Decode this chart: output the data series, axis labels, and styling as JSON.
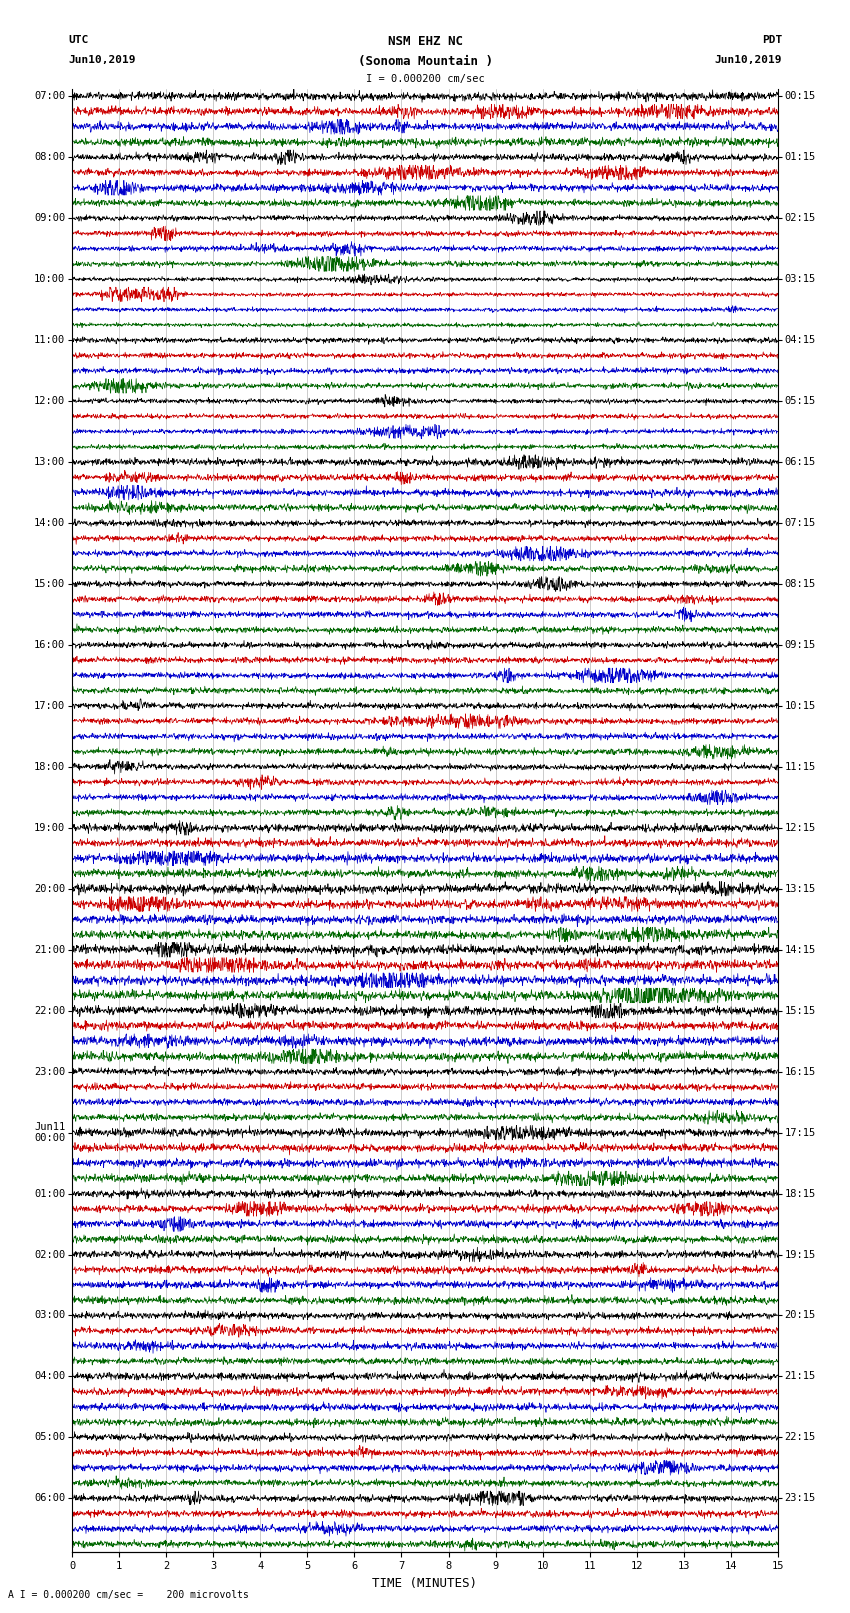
{
  "title_line1": "NSM EHZ NC",
  "title_line2": "(Sonoma Mountain )",
  "scale_label": "I = 0.000200 cm/sec",
  "footer_label": "A I = 0.000200 cm/sec =    200 microvolts",
  "left_header": "UTC",
  "left_date": "Jun10,2019",
  "right_header": "PDT",
  "right_date": "Jun10,2019",
  "xlabel": "TIME (MINUTES)",
  "xmin": 0,
  "xmax": 15,
  "colors": [
    "#000000",
    "#cc0000",
    "#0000cc",
    "#006600"
  ],
  "utc_hour_labels": [
    "07:00",
    "08:00",
    "09:00",
    "10:00",
    "11:00",
    "12:00",
    "13:00",
    "14:00",
    "15:00",
    "16:00",
    "17:00",
    "18:00",
    "19:00",
    "20:00",
    "21:00",
    "22:00",
    "23:00",
    "Jun11\n00:00",
    "01:00",
    "02:00",
    "03:00",
    "04:00",
    "05:00",
    "06:00"
  ],
  "pdt_hour_labels": [
    "00:15",
    "01:15",
    "02:15",
    "03:15",
    "04:15",
    "05:15",
    "06:15",
    "07:15",
    "08:15",
    "09:15",
    "10:15",
    "11:15",
    "12:15",
    "13:15",
    "14:15",
    "15:15",
    "16:15",
    "17:15",
    "18:15",
    "19:15",
    "20:15",
    "21:15",
    "22:15",
    "23:15"
  ],
  "num_hours": 24,
  "traces_per_hour": 4,
  "samples_per_trace": 1800,
  "bg_color": "#ffffff",
  "grid_color": "#999999",
  "tick_label_fontsize": 7.5,
  "title_fontsize": 9
}
